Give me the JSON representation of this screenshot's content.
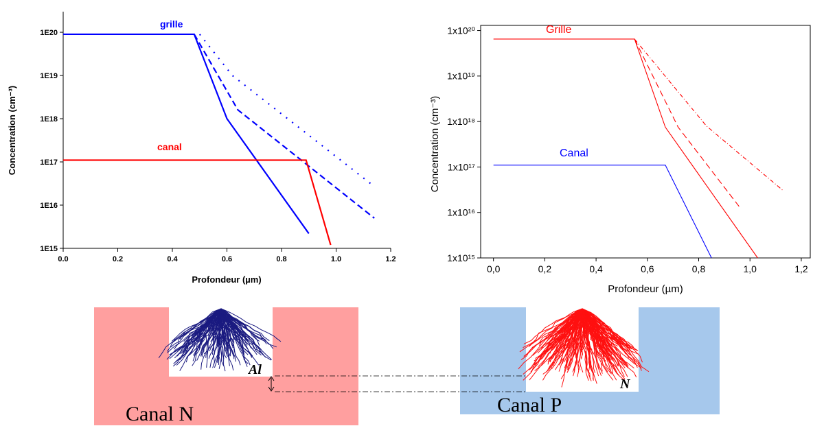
{
  "chart_data": [
    {
      "type": "line",
      "frame": "axes",
      "y_label": "Concentration (cm⁻³)",
      "x_label": "Profondeur (µm)",
      "log_y": true,
      "xlim": [
        0,
        1.2
      ],
      "ylim": [
        1000000000000000.0,
        3e+20
      ],
      "xticks": [
        {
          "value": 0,
          "label": "0.0"
        },
        0.2,
        0.4,
        0.6,
        0.8,
        {
          "value": 1,
          "label": "1.0"
        },
        1.2
      ],
      "yticks": [
        {
          "value": 1000000000000000.0,
          "label": "1E15"
        },
        {
          "value": 1e+16,
          "label": "1E16"
        },
        {
          "value": 1e+17,
          "label": "1E17"
        },
        {
          "value": 1e+18,
          "label": "1E18"
        },
        {
          "value": 1e+19,
          "label": "1E19"
        },
        {
          "value": 1e+20,
          "label": "1E20"
        }
      ],
      "series": [
        {
          "name": "grille",
          "color": "#0000ff",
          "dash": "solid",
          "x": [
            0,
            0.48,
            0.6,
            0.9
          ],
          "values": [
            9e+19,
            9e+19,
            1e+18,
            2200000000000000.0
          ]
        },
        {
          "color": "#0000ff",
          "dash": "dashed",
          "x": [
            0.48,
            0.64,
            1.14
          ],
          "values": [
            9e+19,
            1.6e+18,
            5000000000000000.0
          ]
        },
        {
          "color": "#0000ff",
          "dash": "dotted",
          "x": [
            0.5,
            0.62,
            1.14
          ],
          "values": [
            9e+19,
            1e+19,
            2.7e+16
          ]
        },
        {
          "name": "canal",
          "color": "#ff0000",
          "dash": "solid",
          "x": [
            0,
            0.89,
            0.98
          ],
          "values": [
            1.1e+17,
            1.1e+17,
            1200000000000000.0
          ]
        }
      ]
    },
    {
      "type": "line",
      "frame": "box",
      "y_label": "Concentration (cm⁻³)",
      "x_label": "Profondeur (µm)",
      "log_y": true,
      "xlim": [
        -0.05,
        1.235
      ],
      "ylim": [
        1000000000000000.0,
        1.3e+20
      ],
      "xticks": [
        {
          "value": 0,
          "label": "0,0"
        },
        {
          "value": 0.2,
          "label": "0,2"
        },
        {
          "value": 0.4,
          "label": "0,4"
        },
        {
          "value": 0.6,
          "label": "0,6"
        },
        {
          "value": 0.8,
          "label": "0,8"
        },
        {
          "value": 1,
          "label": "1,0"
        },
        {
          "value": 1.2,
          "label": "1,2"
        }
      ],
      "yticks": [
        {
          "value": 1000000000000000.0,
          "label": "1x10¹⁵"
        },
        {
          "value": 1e+16,
          "label": "1x10¹⁶"
        },
        {
          "value": 1e+17,
          "label": "1x10¹⁷"
        },
        {
          "value": 1e+18,
          "label": "1x10¹⁸"
        },
        {
          "value": 1e+19,
          "label": "1x10¹⁹"
        },
        {
          "value": 1e+20,
          "label": "1x10²⁰"
        }
      ],
      "series": [
        {
          "name": "Grille",
          "color": "#ff0000",
          "dash": "solid",
          "x": [
            0,
            0.55,
            0.67,
            1.03
          ],
          "values": [
            6.5e+19,
            6.5e+19,
            7.5e+17,
            1000000000000000.0
          ]
        },
        {
          "color": "#ff0000",
          "dash": "dashed",
          "x": [
            0.55,
            0.72,
            0.96
          ],
          "values": [
            6.5e+19,
            7.5e+17,
            1.3e+16
          ]
        },
        {
          "color": "#ff0000",
          "dash": "dashdot",
          "x": [
            0.55,
            0.83,
            1.13
          ],
          "values": [
            6.5e+19,
            8e+17,
            3e+16
          ]
        },
        {
          "name": "Canal",
          "color": "#0000ff",
          "dash": "solid",
          "x": [
            0,
            0.67,
            0.85
          ],
          "values": [
            1.1e+17,
            1.1e+17,
            1000000000000000.0
          ]
        }
      ]
    }
  ],
  "diagram": {
    "left_mark": "Al",
    "right_mark": "N",
    "left_label": "Canal N",
    "right_label": "Canal P"
  }
}
